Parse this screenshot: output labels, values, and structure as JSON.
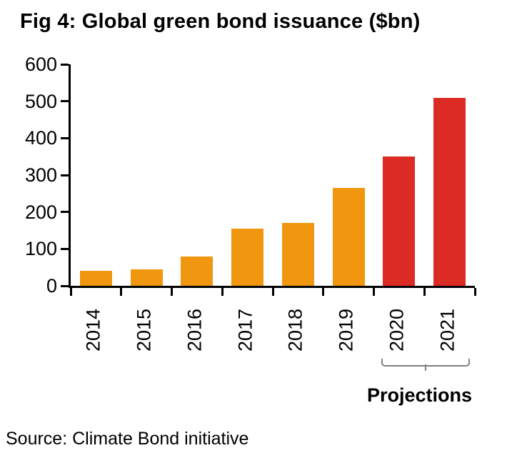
{
  "title": "Fig 4: Global green bond issuance ($bn)",
  "source": "Source: Climate Bond initiative",
  "annotation": {
    "label": "Projections"
  },
  "chart_data": {
    "type": "bar",
    "title": "Fig 4: Global green bond issuance ($bn)",
    "categories": [
      "2014",
      "2015",
      "2016",
      "2017",
      "2018",
      "2019",
      "2020",
      "2021"
    ],
    "values": [
      40,
      45,
      80,
      155,
      170,
      265,
      350,
      510
    ],
    "xlabel": "",
    "ylabel": "",
    "ylim": [
      0,
      600
    ],
    "yticks": [
      0,
      100,
      200,
      300,
      400,
      500,
      600
    ],
    "grid": false,
    "legend": "none",
    "colors": {
      "actual": "#F0960F",
      "projection": "#DB2B24"
    },
    "projection_from_index": 6,
    "projection_categories": [
      "2020",
      "2021"
    ],
    "projection_annotation": "Projections"
  }
}
